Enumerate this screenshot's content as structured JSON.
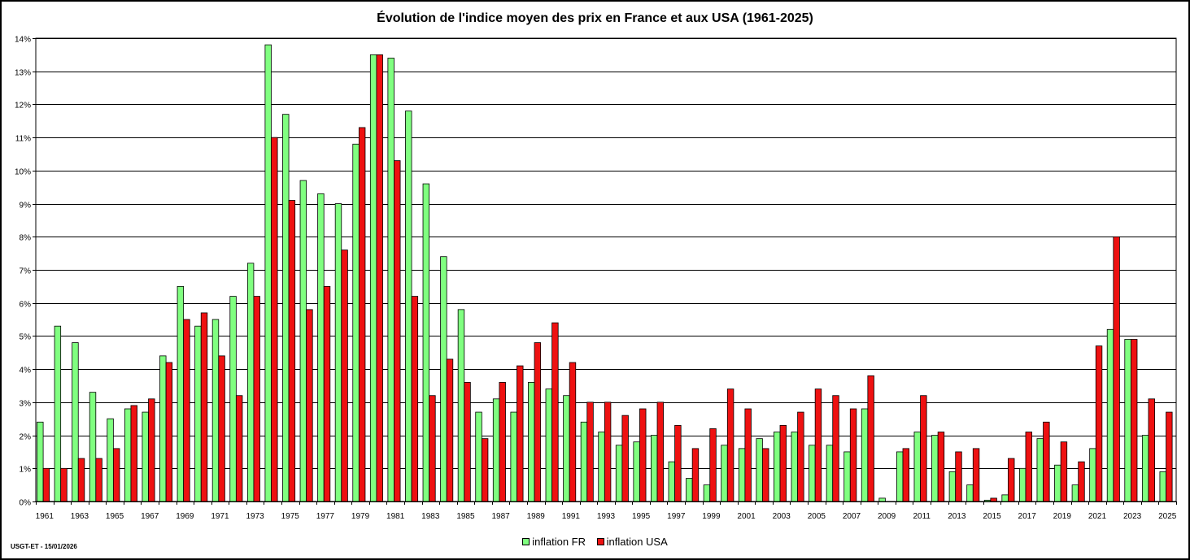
{
  "footer_note": "USGT-ET - 15/01/2026",
  "chart_data": {
    "type": "bar",
    "title": "Évolution de l'indice moyen des prix en France et aux USA (1961-2025)",
    "xlabel": "",
    "ylabel": "",
    "ylim": [
      0,
      14
    ],
    "y_ticks": [
      "0%",
      "1%",
      "2%",
      "3%",
      "4%",
      "5%",
      "6%",
      "7%",
      "8%",
      "9%",
      "10%",
      "11%",
      "12%",
      "13%",
      "14%"
    ],
    "grid": true,
    "legend_position": "bottom",
    "categories": [
      "1961",
      "1962",
      "1963",
      "1964",
      "1965",
      "1966",
      "1967",
      "1968",
      "1969",
      "1970",
      "1971",
      "1972",
      "1973",
      "1974",
      "1975",
      "1976",
      "1977",
      "1978",
      "1979",
      "1980",
      "1981",
      "1982",
      "1983",
      "1984",
      "1985",
      "1986",
      "1987",
      "1988",
      "1989",
      "1990",
      "1991",
      "1992",
      "1993",
      "1994",
      "1995",
      "1996",
      "1997",
      "1998",
      "1999",
      "2000",
      "2001",
      "2002",
      "2003",
      "2004",
      "2005",
      "2006",
      "2007",
      "2008",
      "2009",
      "2010",
      "2011",
      "2012",
      "2013",
      "2014",
      "2015",
      "2016",
      "2017",
      "2018",
      "2019",
      "2020",
      "2021",
      "2022",
      "2023",
      "2024",
      "2025"
    ],
    "x_tick_labels": [
      "1961",
      "",
      "1963",
      "",
      "1965",
      "",
      "1967",
      "",
      "1969",
      "",
      "1971",
      "",
      "1973",
      "",
      "1975",
      "",
      "1977",
      "",
      "1979",
      "",
      "1981",
      "",
      "1983",
      "",
      "1985",
      "",
      "1987",
      "",
      "1989",
      "",
      "1991",
      "",
      "1993",
      "",
      "1995",
      "",
      "1997",
      "",
      "1999",
      "",
      "2001",
      "",
      "2003",
      "",
      "2005",
      "",
      "2007",
      "",
      "2009",
      "",
      "2011",
      "",
      "2013",
      "",
      "2015",
      "",
      "2017",
      "",
      "2019",
      "",
      "2021",
      "",
      "2023",
      "",
      "2025"
    ],
    "series": [
      {
        "name": "inflation FR",
        "color": "#80ff80",
        "values": [
          2.4,
          5.3,
          4.8,
          3.3,
          2.5,
          2.8,
          2.7,
          4.4,
          6.5,
          5.3,
          5.5,
          6.2,
          7.2,
          13.8,
          11.7,
          9.7,
          9.3,
          9.0,
          10.8,
          13.5,
          13.4,
          11.8,
          9.6,
          7.4,
          5.8,
          2.7,
          3.1,
          2.7,
          3.6,
          3.4,
          3.2,
          2.4,
          2.1,
          1.7,
          1.8,
          2.0,
          1.2,
          0.7,
          0.5,
          1.7,
          1.6,
          1.9,
          2.1,
          2.1,
          1.7,
          1.7,
          1.5,
          2.8,
          0.1,
          1.5,
          2.1,
          2.0,
          0.9,
          0.5,
          0.04,
          0.2,
          1.0,
          1.9,
          1.1,
          0.5,
          1.6,
          5.2,
          4.9,
          2.0,
          0.9
        ]
      },
      {
        "name": "inflation USA",
        "color": "#ee1111",
        "values": [
          1.0,
          1.0,
          1.3,
          1.3,
          1.6,
          2.9,
          3.1,
          4.2,
          5.5,
          5.7,
          4.4,
          3.2,
          6.2,
          11.0,
          9.1,
          5.8,
          6.5,
          7.6,
          11.3,
          13.5,
          10.3,
          6.2,
          3.2,
          4.3,
          3.6,
          1.9,
          3.6,
          4.1,
          4.8,
          5.4,
          4.2,
          3.0,
          3.0,
          2.6,
          2.8,
          3.0,
          2.3,
          1.6,
          2.2,
          3.4,
          2.8,
          1.6,
          2.3,
          2.7,
          3.4,
          3.2,
          2.8,
          3.8,
          0.0,
          1.6,
          3.2,
          2.1,
          1.5,
          1.6,
          0.1,
          1.3,
          2.1,
          2.4,
          1.8,
          1.2,
          4.7,
          8.0,
          4.9,
          3.1,
          2.7
        ]
      }
    ]
  }
}
